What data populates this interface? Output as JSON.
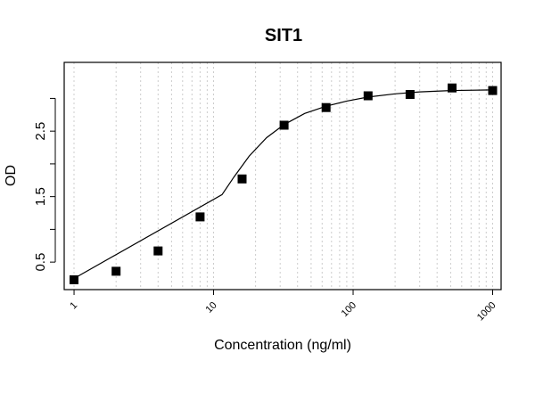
{
  "chart_data": {
    "type": "scatter",
    "title": "SIT1",
    "xlabel": "Concentration (ng/ml)",
    "ylabel": "OD",
    "x_scale": "log",
    "xlim": [
      0.85,
      1150
    ],
    "ylim": [
      0.08,
      3.55
    ],
    "grid": true,
    "x_ticks": [
      1,
      10,
      100,
      1000
    ],
    "x_tick_labels": [
      "1",
      "10",
      "100",
      "1000"
    ],
    "y_ticks": [
      0.5,
      1.0,
      1.5,
      2.0,
      2.5,
      3.0
    ],
    "y_tick_labels": [
      "0.5",
      "",
      "1.5",
      "",
      "2.5",
      ""
    ],
    "series": [
      {
        "kind": "points",
        "x": [
          1,
          2,
          4,
          8,
          16,
          32,
          64,
          128,
          256,
          512,
          1000
        ],
        "y": [
          0.23,
          0.36,
          0.67,
          1.19,
          1.77,
          2.59,
          2.86,
          3.04,
          3.06,
          3.16,
          3.12
        ]
      },
      {
        "kind": "fit",
        "x": [
          1,
          11.5,
          14,
          18,
          24,
          32,
          45,
          64,
          90,
          128,
          200,
          300,
          500,
          1000
        ],
        "y": [
          0.25,
          1.53,
          1.8,
          2.12,
          2.4,
          2.6,
          2.77,
          2.88,
          2.96,
          3.02,
          3.07,
          3.1,
          3.12,
          3.13
        ]
      }
    ]
  }
}
